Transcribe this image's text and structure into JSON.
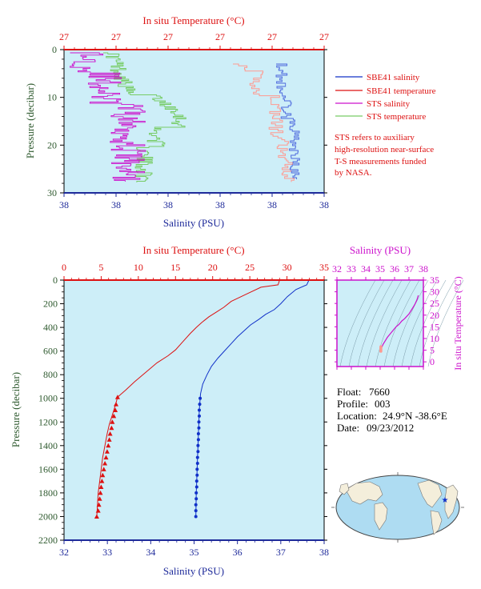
{
  "colors": {
    "plot_bg": "#cdeef8",
    "red": "#dd1111",
    "blue": "#1030c8",
    "magenta": "#cc11cc",
    "green": "#77cc66",
    "salmon": "#ff9a90",
    "lightblue": "#4a66dd",
    "axis_green": "#2f5a2f",
    "navy": "#1e2a9a"
  },
  "top_chart": {
    "xlabel_top": "In situ Temperature (°C)",
    "xlabel_bottom": "Salinity (PSU)",
    "ylabel": "Pressure (decibar)",
    "top_ticks": [
      "27",
      "27",
      "27",
      "27",
      "27",
      "27"
    ],
    "bottom_ticks": [
      "38",
      "38",
      "38",
      "38",
      "38",
      "38"
    ],
    "y_ticks": [
      "0",
      "10",
      "20",
      "30"
    ],
    "legend": [
      {
        "label": "SBE41 salinity",
        "color": "#1030c8"
      },
      {
        "label": "SBE41 temperature",
        "color": "#dd1111"
      },
      {
        "label": "STS salinity",
        "color": "#cc11cc"
      },
      {
        "label": "STS temperature",
        "color": "#77cc66"
      }
    ],
    "note": [
      "STS refers to auxiliary",
      "high-resolution near-surface",
      "T-S measurements funded",
      "by NASA."
    ]
  },
  "main_chart": {
    "xlabel_top": "In situ Temperature (°C)",
    "xlabel_bottom": "Salinity (PSU)",
    "ylabel": "Pressure (decibar)",
    "top_ticks": [
      "0",
      "5",
      "10",
      "15",
      "20",
      "25",
      "30",
      "35"
    ],
    "bottom_ticks": [
      "32",
      "33",
      "34",
      "35",
      "36",
      "37",
      "38"
    ],
    "y_ticks": [
      "0",
      "200",
      "400",
      "600",
      "800",
      "1000",
      "1200",
      "1400",
      "1600",
      "1800",
      "2000",
      "2200"
    ]
  },
  "ts_chart": {
    "xlabel": "Salinity (PSU)",
    "ylabel": "In situ Temperature (°C)",
    "x_ticks": [
      "32",
      "33",
      "34",
      "35",
      "36",
      "37",
      "38"
    ],
    "y_ticks": [
      "0",
      "5",
      "10",
      "15",
      "20",
      "25",
      "30",
      "35"
    ]
  },
  "info": {
    "float_label": "Float:",
    "float_value": "7660",
    "profile_label": "Profile:",
    "profile_value": "003",
    "location_label": "Location:",
    "location_value": "24.9°N  -38.6°E",
    "date_label": "Date:",
    "date_value": "09/23/2012"
  },
  "chart_data": [
    {
      "type": "line",
      "name": "main profile",
      "xlabel": "Salinity (PSU)",
      "x2label": "In situ Temperature (°C)",
      "ylabel": "Pressure (decibar)",
      "xlim": [
        32,
        38
      ],
      "x2lim": [
        0,
        35
      ],
      "ylim": [
        2200,
        0
      ],
      "series": [
        {
          "name": "salinity",
          "color": "#1030c8",
          "x": [
            37.65,
            37.6,
            37.35,
            37.15,
            37.0,
            36.85,
            36.65,
            36.5,
            36.3,
            36.15,
            36.0,
            35.85,
            35.7,
            35.55,
            35.4,
            35.3,
            35.2,
            35.15,
            35.14,
            35.12,
            35.11,
            35.1,
            35.09,
            35.08,
            35.07,
            35.06,
            35.05,
            35.04
          ],
          "y": [
            0,
            40,
            80,
            140,
            200,
            250,
            290,
            330,
            380,
            430,
            480,
            540,
            600,
            660,
            730,
            800,
            880,
            960,
            1000,
            1100,
            1200,
            1300,
            1400,
            1500,
            1600,
            1700,
            1800,
            2000
          ]
        },
        {
          "name": "temperature",
          "color": "#dd1111",
          "x": [
            29.0,
            28.8,
            26.5,
            24.5,
            22.5,
            21.5,
            20.5,
            19.5,
            18.5,
            17.8,
            17.0,
            16.0,
            15.0,
            14.0,
            12.5,
            11.0,
            9.5,
            8.3,
            7.2,
            6.9,
            6.5,
            6.1,
            5.8,
            5.5,
            5.2,
            5.0,
            4.8,
            4.6,
            4.4
          ],
          "y": [
            0,
            40,
            60,
            120,
            180,
            230,
            270,
            310,
            360,
            400,
            450,
            520,
            590,
            640,
            700,
            780,
            860,
            930,
            990,
            1060,
            1140,
            1220,
            1300,
            1400,
            1500,
            1600,
            1700,
            1800,
            2000
          ]
        },
        {
          "name": "salinity bottle",
          "color": "#1030c8",
          "x": [
            35.14,
            35.13,
            35.12,
            35.12,
            35.11,
            35.11,
            35.1,
            35.1,
            35.09,
            35.09,
            35.08,
            35.08,
            35.07,
            35.07,
            35.06,
            35.06,
            35.05,
            35.05,
            35.04,
            35.04,
            35.04
          ],
          "y": [
            1000,
            1050,
            1100,
            1150,
            1200,
            1250,
            1300,
            1350,
            1400,
            1450,
            1500,
            1550,
            1600,
            1650,
            1700,
            1750,
            1800,
            1850,
            1900,
            1950,
            2000
          ]
        },
        {
          "name": "temperature bottle",
          "color": "#dd1111",
          "x": [
            7.2,
            7.0,
            6.9,
            6.7,
            6.5,
            6.4,
            6.2,
            6.1,
            5.95,
            5.8,
            5.65,
            5.5,
            5.35,
            5.2,
            5.1,
            5.0,
            4.9,
            4.8,
            4.7,
            4.6,
            4.4
          ],
          "y": [
            990,
            1050,
            1100,
            1150,
            1200,
            1250,
            1300,
            1350,
            1400,
            1450,
            1500,
            1550,
            1600,
            1650,
            1700,
            1750,
            1800,
            1850,
            1900,
            1950,
            2000
          ]
        }
      ]
    },
    {
      "type": "line",
      "name": "T-S diagram",
      "xlabel": "Salinity (PSU)",
      "ylabel": "In situ Temperature (°C)",
      "xlim": [
        32,
        38
      ],
      "ylim": [
        -2,
        35
      ],
      "series": [
        {
          "name": "T-S",
          "color": "#cc11cc",
          "x": [
            35.05,
            35.1,
            35.2,
            35.35,
            35.5,
            35.7,
            35.9,
            36.1,
            36.3,
            36.5,
            36.7,
            36.85,
            37.0,
            37.2,
            37.4,
            37.55,
            37.65
          ],
          "y": [
            4.5,
            6.0,
            7.5,
            9.0,
            10.5,
            12.0,
            13.5,
            15.0,
            16.0,
            17.5,
            18.5,
            19.5,
            20.5,
            22.5,
            24.5,
            26.5,
            28.5
          ]
        }
      ]
    }
  ]
}
